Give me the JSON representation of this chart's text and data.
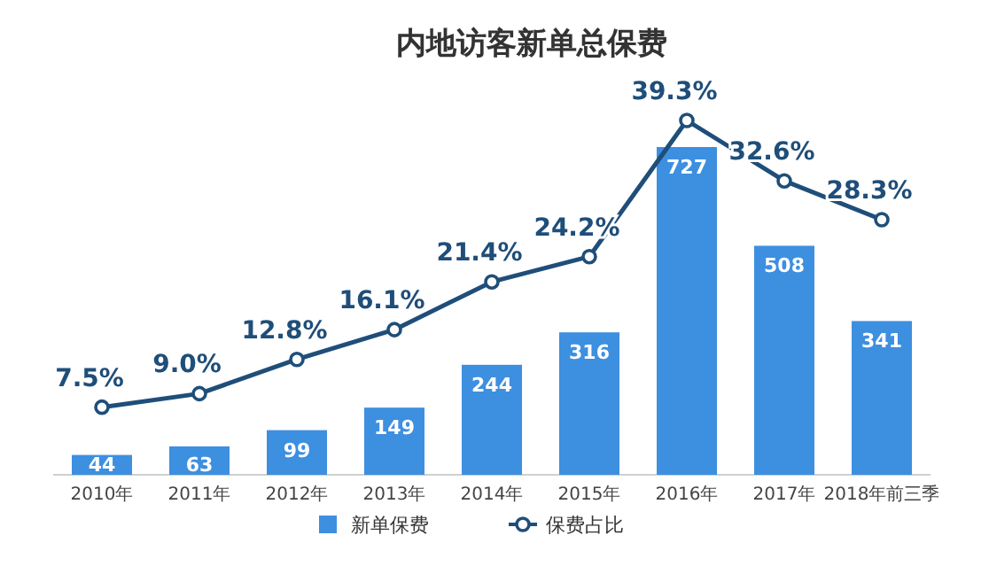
{
  "chart_data": {
    "type": "bar",
    "title": "内地访客新单总保费",
    "categories": [
      "2010年",
      "2011年",
      "2012年",
      "2013年",
      "2014年",
      "2015年",
      "2016年",
      "2017年",
      "2018年前三季"
    ],
    "legend": "bottom",
    "series": [
      {
        "name": "新单保费",
        "color": "#3d8fe0",
        "values": [
          44,
          63,
          99,
          149,
          244,
          316,
          727,
          508,
          341
        ],
        "value_labels": [
          "44",
          "63",
          "99",
          "149",
          "244",
          "316",
          "727",
          "508",
          "341"
        ]
      },
      {
        "name": "保费占比",
        "type": "line",
        "axis": "y2",
        "color": "#1f4e79",
        "marker": "circle",
        "line_style": "solid",
        "values": [
          7.5,
          9.0,
          12.8,
          16.1,
          21.4,
          24.2,
          39.3,
          32.6,
          28.3
        ],
        "value_labels": [
          "7.5%",
          "9.0%",
          "12.8%",
          "16.1%",
          "21.4%",
          "24.2%",
          "39.3%",
          "32.6%",
          "28.3%"
        ]
      }
    ]
  }
}
